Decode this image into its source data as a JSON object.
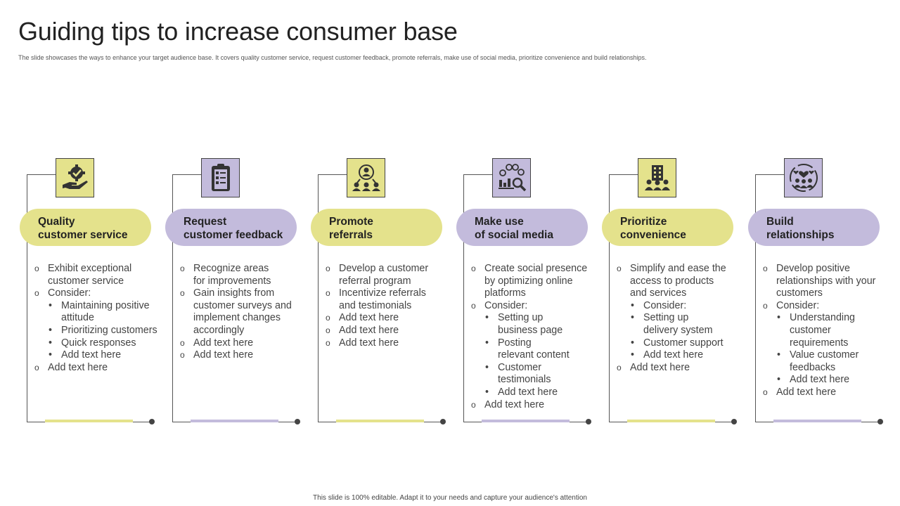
{
  "title": "Guiding tips to increase consumer base",
  "subtitle": "The slide showcases the ways to enhance your target audience base. It covers quality customer service, request customer feedback, promote referrals, make use of social media,  prioritize convenience and build relationships.",
  "footer": "This slide is 100% editable.  Adapt it to your needs and capture your audience's attention",
  "colors": {
    "yellow": "#e4e28c",
    "purple": "#c3bbdc",
    "line": "#555555"
  },
  "cards": [
    {
      "icon": "hand-gear-check-icon",
      "heading": [
        "Quality",
        "customer service"
      ],
      "items": [
        {
          "t": "item",
          "text": "Exhibit exceptional"
        },
        {
          "t": "cont",
          "text": "customer service"
        },
        {
          "t": "item",
          "text": "Consider:"
        },
        {
          "t": "sub",
          "text": "Maintaining positive"
        },
        {
          "t": "subcont",
          "text": "attitude"
        },
        {
          "t": "sub",
          "text": "Prioritizing customers"
        },
        {
          "t": "sub",
          "text": "Quick responses"
        },
        {
          "t": "sub",
          "text": "Add text here"
        },
        {
          "t": "item",
          "text": "Add text here"
        }
      ]
    },
    {
      "icon": "clipboard-checklist-icon",
      "heading": [
        "Request",
        "customer feedback"
      ],
      "items": [
        {
          "t": "item",
          "text": "Recognize areas"
        },
        {
          "t": "cont",
          "text": "for improvements"
        },
        {
          "t": "item",
          "text": "Gain insights from"
        },
        {
          "t": "cont",
          "text": "customer surveys and"
        },
        {
          "t": "cont",
          "text": "implement changes"
        },
        {
          "t": "cont",
          "text": "accordingly"
        },
        {
          "t": "item",
          "text": "Add text here"
        },
        {
          "t": "item",
          "text": "Add text here"
        }
      ]
    },
    {
      "icon": "referral-network-icon",
      "heading": [
        "Promote",
        "referrals"
      ],
      "items": [
        {
          "t": "item",
          "text": "Develop a customer"
        },
        {
          "t": "cont",
          "text": "referral program"
        },
        {
          "t": "item",
          "text": "Incentivize referrals"
        },
        {
          "t": "cont",
          "text": "and testimonials"
        },
        {
          "t": "item",
          "text": "Add text here"
        },
        {
          "t": "item",
          "text": "Add text here"
        },
        {
          "t": "item",
          "text": "Add text here"
        }
      ]
    },
    {
      "icon": "social-media-analytics-icon",
      "heading": [
        "Make use",
        "of social media"
      ],
      "items": [
        {
          "t": "item",
          "text": "Create social presence"
        },
        {
          "t": "cont",
          "text": "by optimizing online"
        },
        {
          "t": "cont",
          "text": "platforms"
        },
        {
          "t": "item",
          "text": "Consider:"
        },
        {
          "t": "sub",
          "text": "Setting up"
        },
        {
          "t": "subcont",
          "text": "business page"
        },
        {
          "t": "sub",
          "text": "Posting"
        },
        {
          "t": "subcont",
          "text": "relevant content"
        },
        {
          "t": "sub",
          "text": "Customer"
        },
        {
          "t": "subcont",
          "text": "testimonials"
        },
        {
          "t": "sub",
          "text": "Add text here"
        },
        {
          "t": "item",
          "text": "Add text here"
        }
      ]
    },
    {
      "icon": "building-people-icon",
      "heading": [
        "Prioritize",
        "convenience"
      ],
      "items": [
        {
          "t": "item",
          "text": "Simplify and ease the"
        },
        {
          "t": "cont",
          "text": "access to products"
        },
        {
          "t": "cont",
          "text": "and services"
        },
        {
          "t": "sub",
          "text": "Consider:"
        },
        {
          "t": "sub",
          "text": "Setting up"
        },
        {
          "t": "subcont",
          "text": "delivery system"
        },
        {
          "t": "sub",
          "text": "Customer support"
        },
        {
          "t": "sub",
          "text": "Add text here"
        },
        {
          "t": "item",
          "text": "Add text here"
        }
      ]
    },
    {
      "icon": "people-hearts-icon",
      "heading": [
        "Build",
        "relationships"
      ],
      "items": [
        {
          "t": "item",
          "text": "Develop positive"
        },
        {
          "t": "cont",
          "text": "relationships with your"
        },
        {
          "t": "cont",
          "text": "customers"
        },
        {
          "t": "item",
          "text": "Consider:"
        },
        {
          "t": "sub",
          "text": "Understanding"
        },
        {
          "t": "subcont",
          "text": "customer"
        },
        {
          "t": "subcont",
          "text": "requirements"
        },
        {
          "t": "sub",
          "text": "Value customer"
        },
        {
          "t": "subcont",
          "text": "feedbacks"
        },
        {
          "t": "sub",
          "text": "Add text here"
        },
        {
          "t": "item",
          "text": "Add text here"
        }
      ]
    }
  ]
}
